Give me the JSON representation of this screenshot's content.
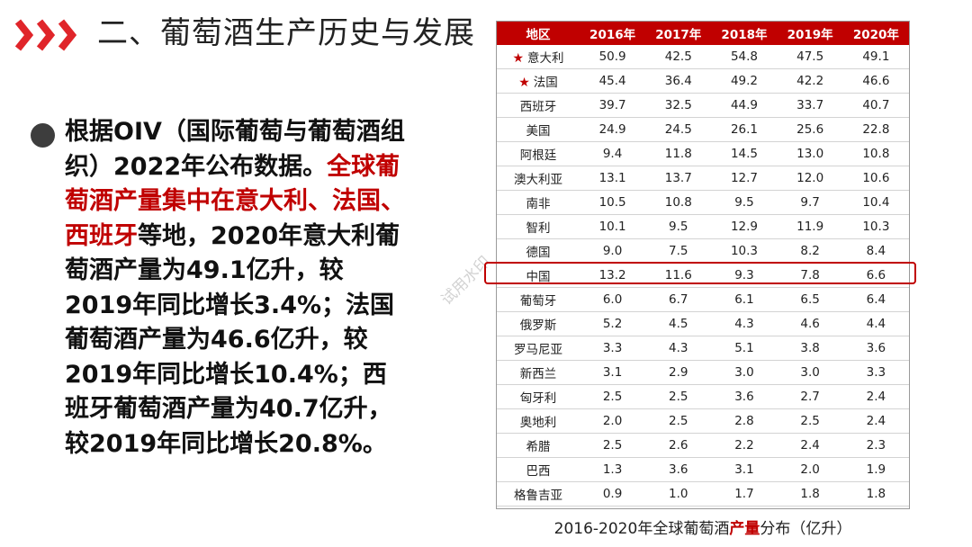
{
  "header": {
    "chevron_icon": "triple-chevron-right",
    "accent_color": "#e0252a",
    "title": "二、葡萄酒生产历史与发展"
  },
  "bullet": {
    "icon": "filled-circle",
    "text_part1": "根据OIV（国际葡萄与葡萄酒组织）2022年公布数据。",
    "text_highlight": "全球葡萄酒产量集中在意大利、法国、西班牙",
    "text_part2": "等地，2020年意大利葡萄酒产量为49.1亿升，较2019年同比增长3.4%；法国葡萄酒产量为46.6亿升，较2019年同比增长10.4%；西班牙葡萄酒产量为40.7亿升，较2019年同比增长20.8%。"
  },
  "table": {
    "header_color": "#c00000",
    "columns": [
      "地区",
      "2016年",
      "2017年",
      "2018年",
      "2019年",
      "2020年"
    ],
    "rows": [
      {
        "region": "意大利",
        "starred": true,
        "values": [
          "50.9",
          "42.5",
          "54.8",
          "47.5",
          "49.1"
        ]
      },
      {
        "region": "法国",
        "starred": true,
        "values": [
          "45.4",
          "36.4",
          "49.2",
          "42.2",
          "46.6"
        ]
      },
      {
        "region": "西班牙",
        "starred": false,
        "values": [
          "39.7",
          "32.5",
          "44.9",
          "33.7",
          "40.7"
        ]
      },
      {
        "region": "美国",
        "starred": false,
        "values": [
          "24.9",
          "24.5",
          "26.1",
          "25.6",
          "22.8"
        ]
      },
      {
        "region": "阿根廷",
        "starred": false,
        "values": [
          "9.4",
          "11.8",
          "14.5",
          "13.0",
          "10.8"
        ]
      },
      {
        "region": "澳大利亚",
        "starred": false,
        "values": [
          "13.1",
          "13.7",
          "12.7",
          "12.0",
          "10.6"
        ]
      },
      {
        "region": "南非",
        "starred": false,
        "values": [
          "10.5",
          "10.8",
          "9.5",
          "9.7",
          "10.4"
        ]
      },
      {
        "region": "智利",
        "starred": false,
        "values": [
          "10.1",
          "9.5",
          "12.9",
          "11.9",
          "10.3"
        ]
      },
      {
        "region": "德国",
        "starred": false,
        "values": [
          "9.0",
          "7.5",
          "10.3",
          "8.2",
          "8.4"
        ]
      },
      {
        "region": "中国",
        "starred": false,
        "highlighted": true,
        "values": [
          "13.2",
          "11.6",
          "9.3",
          "7.8",
          "6.6"
        ]
      },
      {
        "region": "葡萄牙",
        "starred": false,
        "values": [
          "6.0",
          "6.7",
          "6.1",
          "6.5",
          "6.4"
        ]
      },
      {
        "region": "俄罗斯",
        "starred": false,
        "values": [
          "5.2",
          "4.5",
          "4.3",
          "4.6",
          "4.4"
        ]
      },
      {
        "region": "罗马尼亚",
        "starred": false,
        "values": [
          "3.3",
          "4.3",
          "5.1",
          "3.8",
          "3.6"
        ]
      },
      {
        "region": "新西兰",
        "starred": false,
        "values": [
          "3.1",
          "2.9",
          "3.0",
          "3.0",
          "3.3"
        ]
      },
      {
        "region": "匈牙利",
        "starred": false,
        "values": [
          "2.5",
          "2.5",
          "3.6",
          "2.7",
          "2.4"
        ]
      },
      {
        "region": "奥地利",
        "starred": false,
        "values": [
          "2.0",
          "2.5",
          "2.8",
          "2.5",
          "2.4"
        ]
      },
      {
        "region": "希腊",
        "starred": false,
        "values": [
          "2.5",
          "2.6",
          "2.2",
          "2.4",
          "2.3"
        ]
      },
      {
        "region": "巴西",
        "starred": false,
        "values": [
          "1.3",
          "3.6",
          "3.1",
          "2.0",
          "1.9"
        ]
      },
      {
        "region": "格鲁吉亚",
        "starred": false,
        "values": [
          "0.9",
          "1.0",
          "1.7",
          "1.8",
          "1.8"
        ]
      }
    ]
  },
  "caption": {
    "prefix": "2016-2020年全球葡萄酒",
    "highlight": "产量",
    "suffix": "分布（亿升）"
  },
  "watermark": "试用水印"
}
